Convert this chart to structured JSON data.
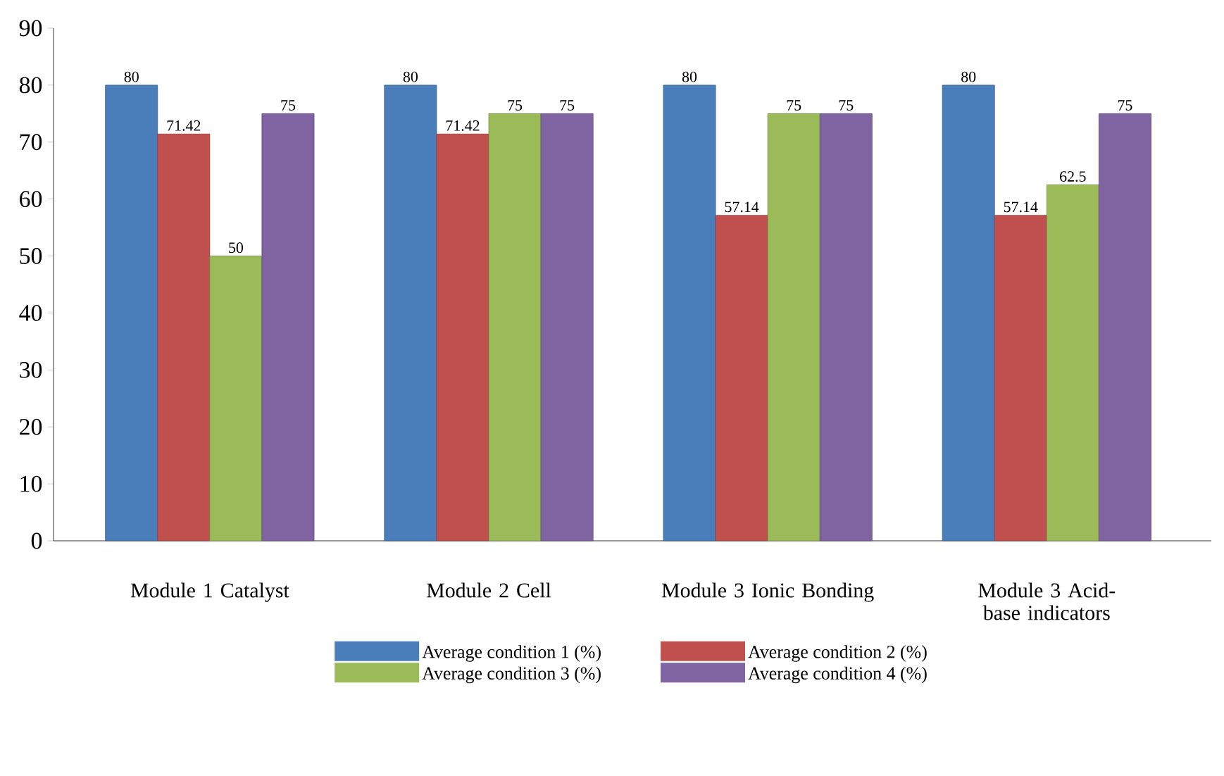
{
  "chart_data": {
    "type": "bar",
    "categories": [
      "Module 1 Catalyst",
      "Module 2 Cell",
      "Module 3 Ionic Bonding",
      "Module 3 Acid-base indicators"
    ],
    "series": [
      {
        "name": "Average condition 1 (%)",
        "color": "#4a7ebb",
        "values": [
          80,
          80,
          80,
          80
        ]
      },
      {
        "name": "Average condition 2 (%)",
        "color": "#c0504d",
        "values": [
          71.42,
          71.42,
          57.14,
          57.14
        ]
      },
      {
        "name": "Average condition 3 (%)",
        "color": "#9bbb59",
        "values": [
          50,
          75,
          75,
          62.5
        ]
      },
      {
        "name": "Average condition 4 (%)",
        "color": "#8064a2",
        "values": [
          75,
          75,
          75,
          75
        ]
      }
    ],
    "ylim": [
      0,
      90
    ],
    "yticks": [
      0,
      10,
      20,
      30,
      40,
      50,
      60,
      70,
      80,
      90
    ],
    "data_labels": true,
    "legend": "bottom",
    "grid": false
  }
}
